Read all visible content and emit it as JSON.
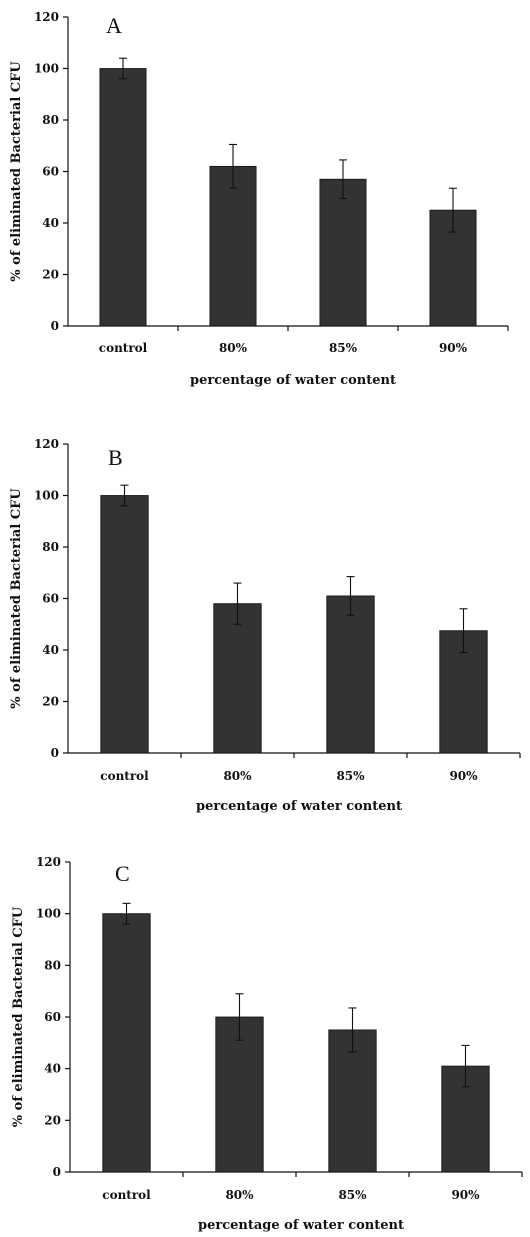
{
  "chart_data": [
    {
      "type": "bar",
      "panel_label": "A",
      "categories": [
        "control",
        "80%",
        "85%",
        "90%"
      ],
      "values": [
        100,
        62,
        57,
        45
      ],
      "errors": [
        4,
        8.5,
        7.5,
        8.5
      ],
      "ylabel": "% of eliminated Bacterial CFU",
      "xlabel": "percentage of water content",
      "ylim": [
        0,
        120
      ],
      "yticks": [
        0,
        20,
        40,
        60,
        80,
        100,
        120
      ],
      "bar_color": "#333333"
    },
    {
      "type": "bar",
      "panel_label": "B",
      "categories": [
        "control",
        "80%",
        "85%",
        "90%"
      ],
      "values": [
        100,
        58,
        61,
        47.5
      ],
      "errors": [
        4,
        8,
        7.5,
        8.5
      ],
      "ylabel": "% of eliminated Bacterial CFU",
      "xlabel": "percentage of water content",
      "ylim": [
        0,
        120
      ],
      "yticks": [
        0,
        20,
        40,
        60,
        80,
        100,
        120
      ],
      "bar_color": "#333333"
    },
    {
      "type": "bar",
      "panel_label": "C",
      "categories": [
        "control",
        "80%",
        "85%",
        "90%"
      ],
      "values": [
        100,
        60,
        55,
        41
      ],
      "errors": [
        4,
        9,
        8.5,
        8
      ],
      "ylabel": "% of eliminated Bacterial CFU",
      "xlabel": "percentage of water content",
      "ylim": [
        0,
        120
      ],
      "yticks": [
        0,
        20,
        40,
        60,
        80,
        100,
        120
      ],
      "bar_color": "#333333"
    }
  ]
}
